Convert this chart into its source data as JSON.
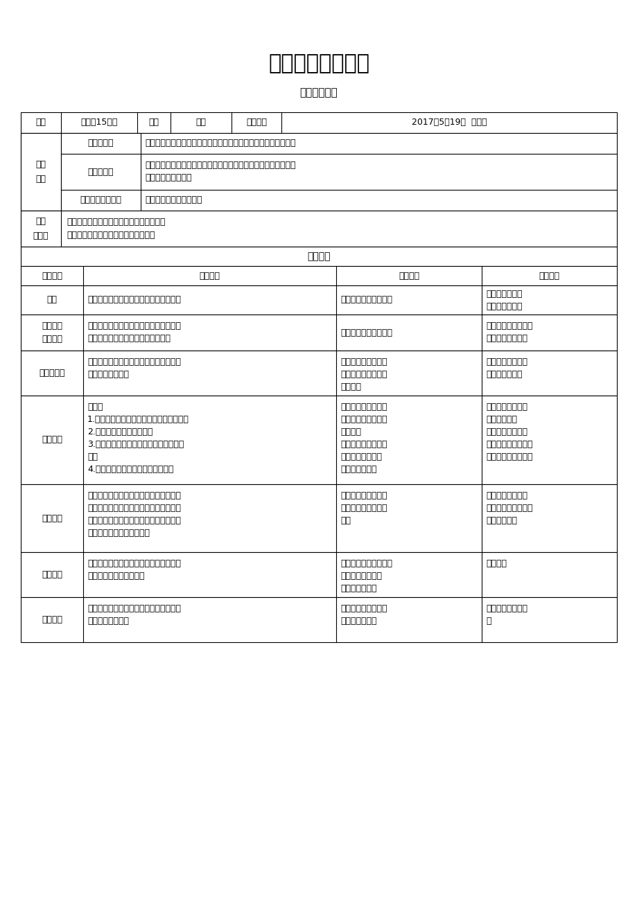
{
  "title": "《雷雨》教学设计",
  "subtitle": "高一级语文组",
  "bg_color": "#ffffff",
  "text_color": "#000000",
  "header_row1": [
    "班级",
    "高一（15）班",
    "科目",
    "语文",
    "上课时间",
    "2017年5月19日  第三节"
  ],
  "teaching_goals_label": "教学\n目标",
  "teaching_goals_rows": [
    [
      "知识与技能",
      "认识到语言是戴剧的第一要素，能够准确生动地演绎话剧的对白。"
    ],
    [
      "过程与方法",
      "通过对戴剧语言的揂摩，把握人物的心理变化和情感冲突，概括主\n要人物的人物形象。"
    ],
    [
      "情感态度与价值观",
      "培养学生对话剧的兴趣。"
    ]
  ],
  "teaching_key_label": "教学\n重难点",
  "teaching_key_content": "重点：揂摩人物语言，把握人物心理变化。\n难点：把握人物情感，概括人物形象。",
  "process_header": "教学过程",
  "process_col_headers": [
    "教学环节",
    "教师活动",
    "学生活动",
    "设计意图"
  ],
  "process_rows": [
    {
      "section": "导入",
      "teacher": "讲述周朴园与鲁侍萍前情往事（配乐）。",
      "student": "听讲，进入故事情境。",
      "design": "衔接故事情节，\n创设故事情境。"
    },
    {
      "section": "定位重点\n分析文本",
      "teacher": "请学生阅读课文，并检索出周朴园与鲁侍\n萍开始相认及相认后的对话的文段。",
      "student": "阅读课文，检索文段。",
      "design": "锻炼学生定位文段，\n筛选信息的能力。"
    },
    {
      "section": "分角色演绎",
      "teacher": "请两位同学分别饰演周朴园和鲁侍萍，演\n出二人相认情节。",
      "student": "两位学生扮演，其他\n学生留心观看，并进\n行评价。",
      "design": "考查学生对文本的\n理解以及评释。"
    },
    {
      "section": "重点把握",
      "teacher": "提问：\n1.身份确认后，周朴园首先的反应是什么？\n2.此时周朴园的态度如何？\n3.周朴园的态度一直是这么強硬吗？为什\n么？\n4.周朴园的态度发生了怎样的转变？",
      "student": "学生思考问题，并检\n索文本、分析文本得\n出答案；\n用准确、生动的语言\n来演绎出周朴园态\n度转变的对白。",
      "design": "考查学生对文本的\n理解与分析；\n考查学生对剧本对\n白的演绎能力，培养\n学生对话剧的兴趣。"
    },
    {
      "section": "合作探究",
      "teacher": "提问：三十年来，周朴园价佛十分怀念死\n去的侍萍，然而当侍萍没死，再出现在他\n面前之时，他却是这样的态度，那么他对\n侍萍的怀念之情是真的吗？",
      "student": "学生分小组讨论，探\n究问题，并选代表回\n答。",
      "design": "引导学生深入理解\n文本，探讨人物情感\n及人物性格。"
    },
    {
      "section": "难点突破",
      "teacher": "请学生概括周朴园的人物形象，并且点拨\n分析方法以及概括要点。",
      "student": "学生思考，并用恰当、\n规范的词语概括周\n朴园人物形象。",
      "design": "联系考点"
    },
    {
      "section": "当堂练习",
      "teacher": "请学生根据所选取剧本片段，分析、概括\n鲁侍萍人物形象。",
      "student": "思考、分析、概括鲁\n侍萍人物形象。",
      "design": "能力提升及方法巩\n固"
    }
  ]
}
